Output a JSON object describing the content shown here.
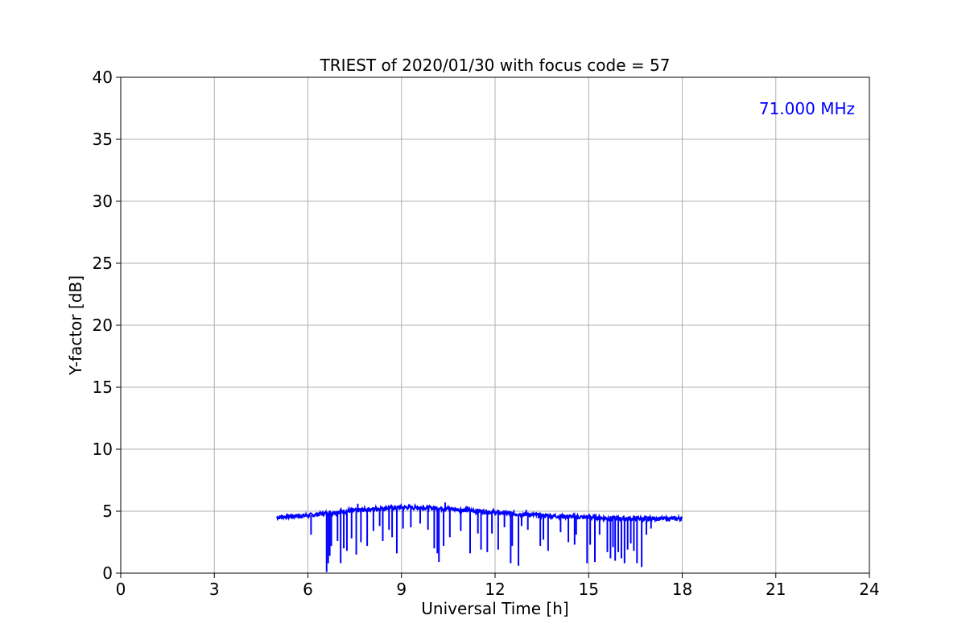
{
  "chart_data": {
    "type": "line",
    "title": "TRIEST of 2020/01/30 with focus code = 57",
    "xlabel": "Universal Time [h]",
    "ylabel": "Y-factor [dB]",
    "xlim": [
      0,
      24
    ],
    "ylim": [
      0,
      40
    ],
    "xticks": [
      0,
      3,
      6,
      9,
      12,
      15,
      18,
      21,
      24
    ],
    "yticks": [
      0,
      5,
      10,
      15,
      20,
      25,
      30,
      35,
      40
    ],
    "grid": true,
    "annotation": "71.000 MHz",
    "annotation_placement": "top-right",
    "series": [
      {
        "color": "#0000ff",
        "baseline": [
          [
            5.0,
            4.5
          ],
          [
            5.5,
            4.6
          ],
          [
            6.0,
            4.65
          ],
          [
            6.5,
            4.8
          ],
          [
            7.0,
            4.95
          ],
          [
            7.5,
            5.05
          ],
          [
            8.0,
            5.15
          ],
          [
            8.5,
            5.25
          ],
          [
            9.0,
            5.3
          ],
          [
            9.5,
            5.3
          ],
          [
            10.0,
            5.25
          ],
          [
            10.5,
            5.2
          ],
          [
            11.0,
            5.1
          ],
          [
            11.5,
            5.0
          ],
          [
            12.0,
            4.9
          ],
          [
            12.5,
            4.8
          ],
          [
            13.0,
            4.75
          ],
          [
            13.5,
            4.65
          ],
          [
            14.0,
            4.6
          ],
          [
            14.5,
            4.55
          ],
          [
            15.0,
            4.5
          ],
          [
            15.5,
            4.45
          ],
          [
            16.0,
            4.4
          ],
          [
            16.5,
            4.4
          ],
          [
            17.0,
            4.4
          ],
          [
            17.5,
            4.4
          ],
          [
            18.0,
            4.4
          ]
        ],
        "dips": [
          [
            6.1,
            3.1
          ],
          [
            6.6,
            0.1
          ],
          [
            6.65,
            0.8
          ],
          [
            6.7,
            1.4
          ],
          [
            6.75,
            2.2
          ],
          [
            6.95,
            2.6
          ],
          [
            7.05,
            0.8
          ],
          [
            7.15,
            2.0
          ],
          [
            7.25,
            1.8
          ],
          [
            7.4,
            2.8
          ],
          [
            7.55,
            1.5
          ],
          [
            7.7,
            2.5
          ],
          [
            7.9,
            2.2
          ],
          [
            8.1,
            3.4
          ],
          [
            8.3,
            3.8
          ],
          [
            8.4,
            2.6
          ],
          [
            8.6,
            3.5
          ],
          [
            8.7,
            2.9
          ],
          [
            8.85,
            1.6
          ],
          [
            9.05,
            3.6
          ],
          [
            9.3,
            3.7
          ],
          [
            9.6,
            4.0
          ],
          [
            9.85,
            3.5
          ],
          [
            10.05,
            2.0
          ],
          [
            10.15,
            1.6
          ],
          [
            10.2,
            0.9
          ],
          [
            10.35,
            2.2
          ],
          [
            10.55,
            2.9
          ],
          [
            10.9,
            3.4
          ],
          [
            11.2,
            1.6
          ],
          [
            11.45,
            3.2
          ],
          [
            11.55,
            1.9
          ],
          [
            11.75,
            1.7
          ],
          [
            11.9,
            3.2
          ],
          [
            12.1,
            1.9
          ],
          [
            12.3,
            3.7
          ],
          [
            12.5,
            0.8
          ],
          [
            12.55,
            2.2
          ],
          [
            12.75,
            0.6
          ],
          [
            12.85,
            3.8
          ],
          [
            13.05,
            3.5
          ],
          [
            13.45,
            2.2
          ],
          [
            13.55,
            2.7
          ],
          [
            13.7,
            1.8
          ],
          [
            14.1,
            3.3
          ],
          [
            14.35,
            2.5
          ],
          [
            14.55,
            2.3
          ],
          [
            14.6,
            3.1
          ],
          [
            14.95,
            0.8
          ],
          [
            15.05,
            2.3
          ],
          [
            15.2,
            0.9
          ],
          [
            15.35,
            3.1
          ],
          [
            15.6,
            1.7
          ],
          [
            15.7,
            1.2
          ],
          [
            15.78,
            2.1
          ],
          [
            15.85,
            1.0
          ],
          [
            15.95,
            1.7
          ],
          [
            16.05,
            1.2
          ],
          [
            16.15,
            0.8
          ],
          [
            16.25,
            1.9
          ],
          [
            16.35,
            2.4
          ],
          [
            16.45,
            1.8
          ],
          [
            16.55,
            0.8
          ],
          [
            16.7,
            0.5
          ],
          [
            16.85,
            3.1
          ],
          [
            17.0,
            3.6
          ]
        ],
        "spikes": [
          [
            7.6,
            5.6
          ],
          [
            9.7,
            5.5
          ],
          [
            10.4,
            5.7
          ],
          [
            13.0,
            5.1
          ],
          [
            11.1,
            5.4
          ]
        ]
      }
    ]
  }
}
